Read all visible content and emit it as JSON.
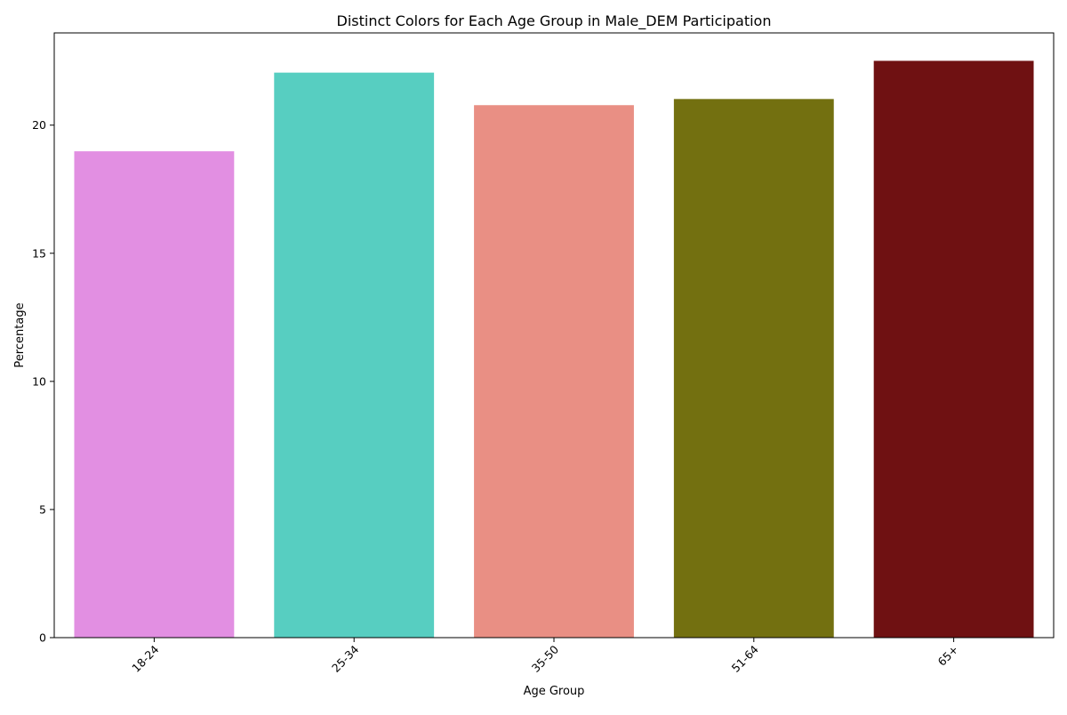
{
  "chart_data": {
    "type": "bar",
    "title": "Distinct Colors for Each Age Group in Male_DEM Participation",
    "xlabel": "Age Group",
    "ylabel": "Percentage",
    "categories": [
      "18-24",
      "25-34",
      "35-50",
      "51-64",
      "65+"
    ],
    "values": [
      18.98,
      22.05,
      20.78,
      21.02,
      22.51
    ],
    "colors": [
      "#e28fe2",
      "#57cec1",
      "#e98f84",
      "#737010",
      "#6f1112"
    ],
    "ylim": [
      0,
      23.6
    ],
    "yticks": [
      "0",
      "5",
      "10",
      "15",
      "20"
    ],
    "ytick_values": [
      0,
      5,
      10,
      15,
      20
    ],
    "xtick_rotation_deg": 45,
    "grid": false,
    "legend": "none"
  }
}
